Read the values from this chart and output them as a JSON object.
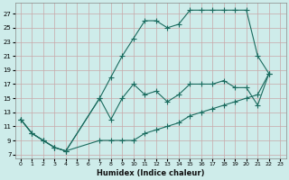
{
  "xlabel": "Humidex (Indice chaleur)",
  "bg_color": "#ceecea",
  "grid_color": "#c8a8a8",
  "line_color": "#1a6b5e",
  "xlim": [
    -0.5,
    23.5
  ],
  "ylim": [
    6.5,
    28.5
  ],
  "xticks": [
    0,
    1,
    2,
    3,
    4,
    5,
    6,
    7,
    8,
    9,
    10,
    11,
    12,
    13,
    14,
    15,
    16,
    17,
    18,
    19,
    20,
    21,
    22,
    23
  ],
  "yticks": [
    7,
    9,
    11,
    13,
    15,
    17,
    19,
    21,
    23,
    25,
    27
  ],
  "line1_x": [
    0,
    1,
    2,
    3,
    4,
    7,
    8,
    9,
    10,
    11,
    12,
    13,
    14,
    15,
    16,
    17,
    18,
    19,
    20,
    21,
    22
  ],
  "line1_y": [
    12,
    10,
    9,
    8,
    7.5,
    15,
    18,
    21,
    23.5,
    26,
    26,
    25,
    25.5,
    27.5,
    27.5,
    27.5,
    27.5,
    27.5,
    27.5,
    21,
    18.5
  ],
  "line2_x": [
    0,
    1,
    2,
    3,
    4,
    7,
    8,
    9,
    10,
    11,
    12,
    13,
    14,
    15,
    16,
    17,
    18,
    19,
    20,
    21,
    22
  ],
  "line2_y": [
    12,
    10,
    9,
    8,
    7.5,
    15,
    12,
    15,
    17,
    15.5,
    16,
    14.5,
    15.5,
    17,
    17,
    17,
    17.5,
    16.5,
    16.5,
    14,
    18.5
  ],
  "line3_x": [
    0,
    1,
    2,
    3,
    4,
    7,
    8,
    9,
    10,
    11,
    12,
    13,
    14,
    15,
    16,
    17,
    18,
    19,
    20,
    21,
    22
  ],
  "line3_y": [
    12,
    10,
    9,
    8,
    7.5,
    9,
    9,
    9,
    9,
    10,
    10.5,
    11,
    11.5,
    12.5,
    13,
    13.5,
    14,
    14.5,
    15,
    15.5,
    18.5
  ]
}
